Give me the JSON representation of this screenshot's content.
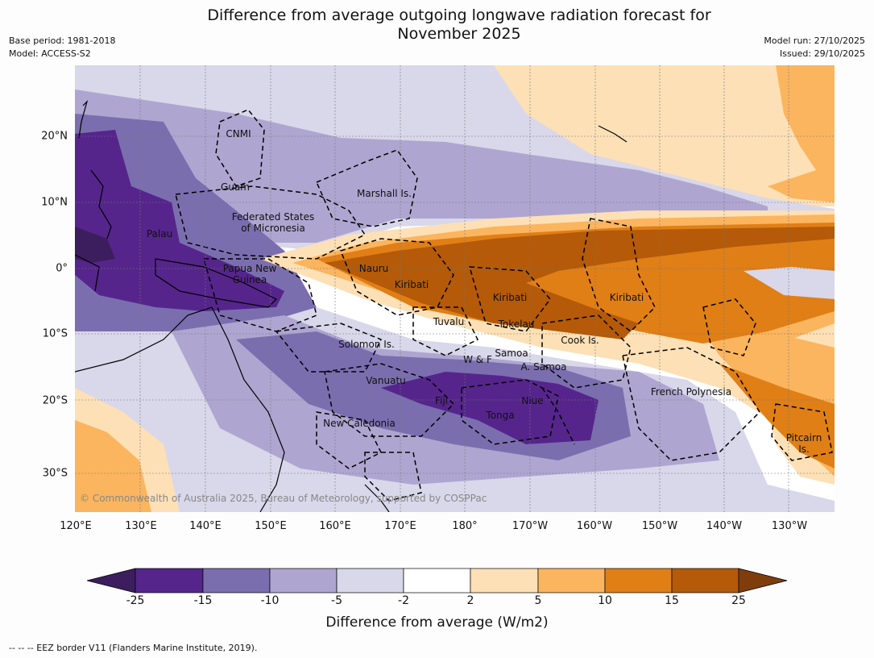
{
  "title": "Difference from average outgoing longwave radiation forecast for\nNovember 2025",
  "meta": {
    "base_period": "Base period: 1981-2018",
    "model": "Model: ACCESS-S2",
    "model_run": "Model run: 27/10/2025",
    "issued": "Issued: 29/10/2025"
  },
  "map": {
    "copyright": "© Commonwealth of Australia 2025, Bureau of Meteorology, supported by COSPPac",
    "lat_labels": [
      "20°N",
      "10°N",
      "0°",
      "10°S",
      "20°S",
      "30°S"
    ],
    "lon_labels": [
      "120°E",
      "130°E",
      "140°E",
      "150°E",
      "160°E",
      "170°E",
      "180°",
      "170°W",
      "160°W",
      "150°W",
      "140°W",
      "130°W"
    ],
    "places": {
      "cnmi": "CNMI",
      "guam": "Guam",
      "marshall": "Marshall Is.",
      "fsm": "Federated States\nof Micronesia",
      "palau": "Palau",
      "png": "Papua New\nGuinea",
      "nauru": "Nauru",
      "kiribati_w": "Kiribati",
      "kiribati_c": "Kiribati",
      "kiribati_e": "Kiribati",
      "tuvalu": "Tuvalu",
      "tokelau": "Tokelau",
      "cook": "Cook Is.",
      "solomon": "Solomon Is.",
      "samoa": "Samoa",
      "wf": "W & F",
      "asamoa": "A. Samoa",
      "vanuatu": "Vanuatu",
      "fiji": "Fiji",
      "niue": "Niue",
      "tonga": "Tonga",
      "newcal": "New Caledonia",
      "frpoly": "French Polynesia",
      "pitcairn": "Pitcairn\nIs."
    }
  },
  "colorbar": {
    "label": "Difference from average (W/m2)",
    "ticks": [
      "-25",
      "-15",
      "-10",
      "-5",
      "-2",
      "2",
      "5",
      "10",
      "15",
      "25"
    ],
    "colors": [
      "#3c1e5e",
      "#55258c",
      "#7b6eaf",
      "#aea6d0",
      "#d9d7ea",
      "#ffffff",
      "#fde0b6",
      "#fbb55f",
      "#e07f16",
      "#b45a08",
      "#7f3d0c"
    ]
  },
  "footnote": "--  --  -- EEZ border V11 (Flanders Marine Institute, 2019)."
}
